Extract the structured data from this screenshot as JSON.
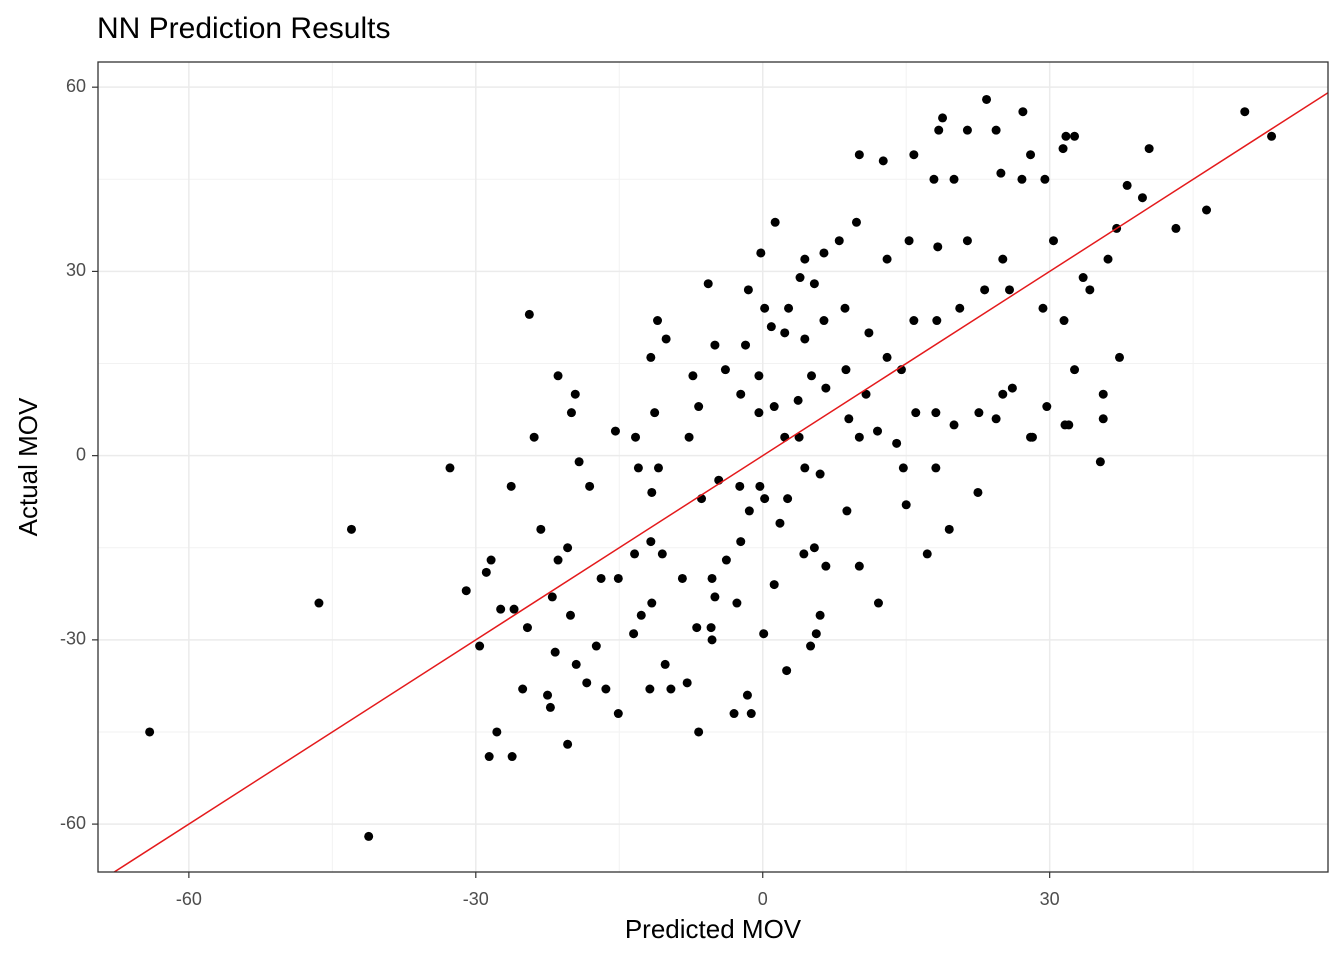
{
  "chart_data": {
    "type": "scatter",
    "title": "NN Prediction Results",
    "x_label": "Predicted MOV",
    "y_label": "Actual MOV",
    "xlim": [
      -69.5,
      59.1
    ],
    "ylim": [
      -67.8,
      64.1
    ],
    "xticks": [
      -60,
      -30,
      0,
      30
    ],
    "yticks": [
      -60,
      -30,
      0,
      30,
      60
    ],
    "minor_xticks": [
      -45,
      -15,
      15,
      45
    ],
    "minor_yticks": [
      -45,
      -15,
      15,
      45
    ],
    "grid": true,
    "color": "#000000",
    "reference_line": {
      "slope": 1,
      "intercept": 0,
      "color": "#e41a1c"
    },
    "x": [
      -64.1,
      -41.2,
      -46.4,
      -43,
      -32.7,
      -31,
      -29.6,
      -28.6,
      -26.2,
      -24.4,
      -23.9,
      -20.4,
      -21.4,
      50.4,
      53.2,
      40.4,
      46.4,
      43.2,
      39.7,
      23.4,
      27.2,
      18.8,
      37.3,
      35.3,
      32,
      28.2,
      22.5,
      12.1,
      10.1,
      -6.7,
      -1.2,
      -3,
      -1.6,
      -22.2,
      -27.8,
      -28.4,
      -28.9,
      -27.4,
      -26,
      -26.3,
      -24.6,
      -25.1,
      -21.4,
      -20.4,
      -20,
      -19.6,
      -19.2,
      -18.1,
      -11,
      -10.1,
      -11.7,
      -5.7,
      -1.5,
      1.3,
      -0.2,
      10.1,
      12.6,
      15.8,
      18.4,
      21.4,
      24.4,
      28,
      31.4,
      31.7,
      32.6,
      27.1,
      29.5,
      24.9,
      20,
      17.9,
      38.1,
      37,
      30.4,
      29.3,
      31.5,
      32.6,
      29.7,
      28,
      25.1,
      19.5,
      17.2,
      15,
      8.8,
      6.6,
      6,
      2.5,
      0.1,
      1.2,
      -5.3,
      -5.4,
      -9.6,
      -7.9,
      -11.8,
      -15.1,
      -13.5,
      -16.4,
      -18.4,
      -17.4,
      -13.4,
      -15.1,
      -16.9,
      -8.4,
      -5.3,
      -5,
      -2.7,
      -11.6,
      -13,
      -10.9,
      -15.4,
      -13.3,
      -11.3,
      -7.7,
      -6.7,
      -7.3,
      -5,
      -3.9,
      -2.3,
      -0.4,
      1.2,
      2.3,
      3.8,
      4.4,
      6,
      2.6,
      0.2,
      -2.4,
      -4.6,
      -6.4,
      2.3,
      4.4,
      6.4,
      8.6,
      11.1,
      13,
      14.5,
      10.8,
      9,
      12,
      14,
      16,
      18.1,
      20,
      18.1,
      14.7,
      10.1,
      6.6,
      5.1,
      8.7,
      5.4,
      6.4,
      8,
      9.8,
      13,
      15.3,
      18.3,
      21.4,
      25.1,
      25.8,
      23.2,
      20.6,
      18.2,
      15.8,
      3.9,
      4.4,
      2.7,
      0.9,
      0.2,
      -1.8,
      -0.4,
      3.7,
      -0.3,
      -1.4,
      1.8,
      -2.3,
      -3.8,
      4.3,
      5.4,
      -11.7,
      -10.5,
      -12.7,
      -11.6,
      -10.2,
      -6.9,
      5.6,
      5,
      -23.2,
      -22,
      -21.7,
      -22.5,
      -20.1,
      -19.5,
      34.2,
      36.1,
      35.6,
      35.6,
      33.5,
      31.6,
      26.1,
      24.4,
      22.6
    ],
    "values": [
      -45,
      -62,
      -24,
      -12,
      -2,
      -22,
      -31,
      -49,
      -49,
      23,
      3,
      -47,
      13,
      56,
      52,
      50,
      40,
      37,
      42,
      58,
      56,
      55,
      16,
      -1,
      5,
      3,
      -6,
      -24,
      -18,
      -45,
      -42,
      -42,
      -39,
      -41,
      -45,
      -17,
      -19,
      -25,
      -25,
      -5,
      -28,
      -38,
      -17,
      -15,
      7,
      10,
      -1,
      -5,
      22,
      19,
      16,
      28,
      27,
      38,
      33,
      49,
      48,
      49,
      53,
      53,
      53,
      49,
      50,
      52,
      52,
      45,
      45,
      46,
      45,
      45,
      44,
      37,
      35,
      24,
      22,
      14,
      8,
      3,
      10,
      -12,
      -16,
      -8,
      -9,
      -18,
      -26,
      -35,
      -29,
      -21,
      -30,
      -28,
      -38,
      -37,
      -38,
      -42,
      -29,
      -38,
      -37,
      -31,
      -16,
      -20,
      -20,
      -20,
      -20,
      -23,
      -24,
      -6,
      -2,
      -2,
      4,
      3,
      7,
      3,
      8,
      13,
      18,
      14,
      10,
      7,
      8,
      3,
      3,
      -2,
      -3,
      -7,
      -7,
      -5,
      -4,
      -7,
      20,
      19,
      22,
      24,
      20,
      16,
      14,
      10,
      6,
      4,
      2,
      7,
      7,
      5,
      -2,
      -2,
      3,
      11,
      13,
      14,
      28,
      33,
      35,
      38,
      32,
      35,
      34,
      35,
      32,
      27,
      27,
      24,
      22,
      22,
      29,
      32,
      24,
      21,
      24,
      18,
      13,
      9,
      -5,
      -9,
      -11,
      -14,
      -17,
      -16,
      -15,
      -14,
      -16,
      -26,
      -24,
      -34,
      -28,
      -29,
      -31,
      -12,
      -23,
      -32,
      -39,
      -26,
      -34,
      27,
      32,
      6,
      10,
      29,
      5,
      11,
      6,
      7
    ]
  }
}
